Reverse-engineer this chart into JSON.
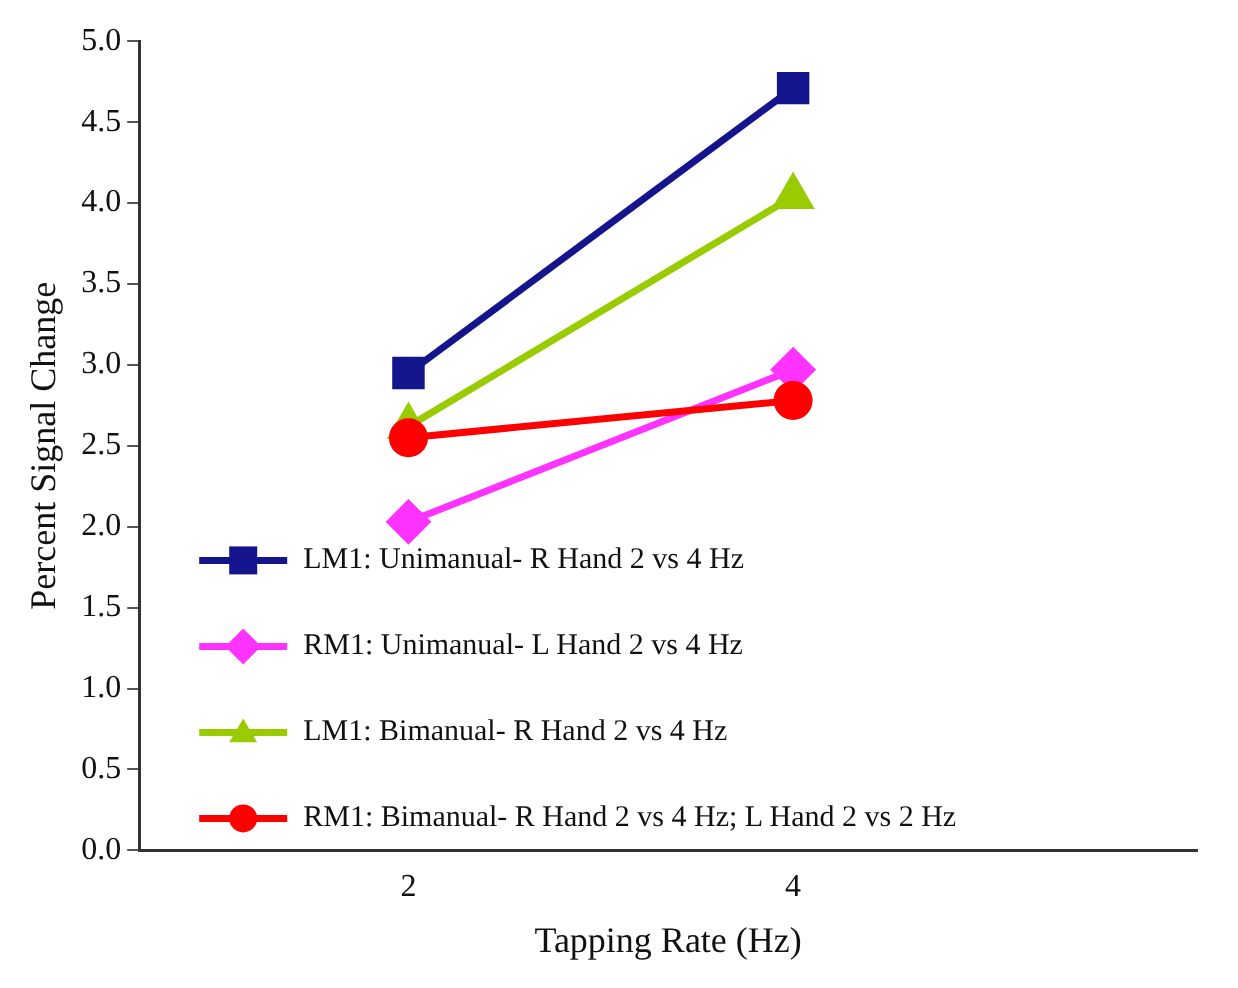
{
  "chart_data": {
    "type": "line",
    "xlabel": "Tapping Rate (Hz)",
    "ylabel": "Percent Signal Change",
    "x": [
      2,
      4
    ],
    "xlim": [
      0.6,
      6.1
    ],
    "xticks": [
      2,
      4
    ],
    "ylim": [
      0,
      5
    ],
    "yticks": [
      {
        "value": 0,
        "label": "0.0"
      },
      0.5,
      {
        "value": 1,
        "label": "1.0"
      },
      1.5,
      {
        "value": 2,
        "label": "2.0"
      },
      2.5,
      {
        "value": 3,
        "label": "3.0"
      },
      3.5,
      {
        "value": 4,
        "label": "4.0"
      },
      4.5,
      {
        "value": 5,
        "label": "5.0"
      }
    ],
    "grid": false,
    "legend": "bottom left",
    "series": [
      {
        "name": "LM1: Unimanual- R Hand 2 vs 4 Hz",
        "color": "#14148c",
        "marker": "square",
        "values": [
          2.95,
          4.71
        ]
      },
      {
        "name": "RM1: Unimanual- L Hand 2 vs 4 Hz",
        "color": "#ff33ff",
        "marker": "diamond",
        "values": [
          2.03,
          2.97
        ]
      },
      {
        "name": "LM1: Bimanual- R Hand 2 vs 4 Hz",
        "color": "#99cc00",
        "marker": "triangle",
        "values": [
          2.62,
          4.04
        ]
      },
      {
        "name": "RM1: Bimanual- R Hand 2 vs 4 Hz; L Hand 2 vs 2 Hz",
        "color": "#ff0000",
        "marker": "circle",
        "values": [
          2.55,
          2.78
        ]
      }
    ]
  }
}
